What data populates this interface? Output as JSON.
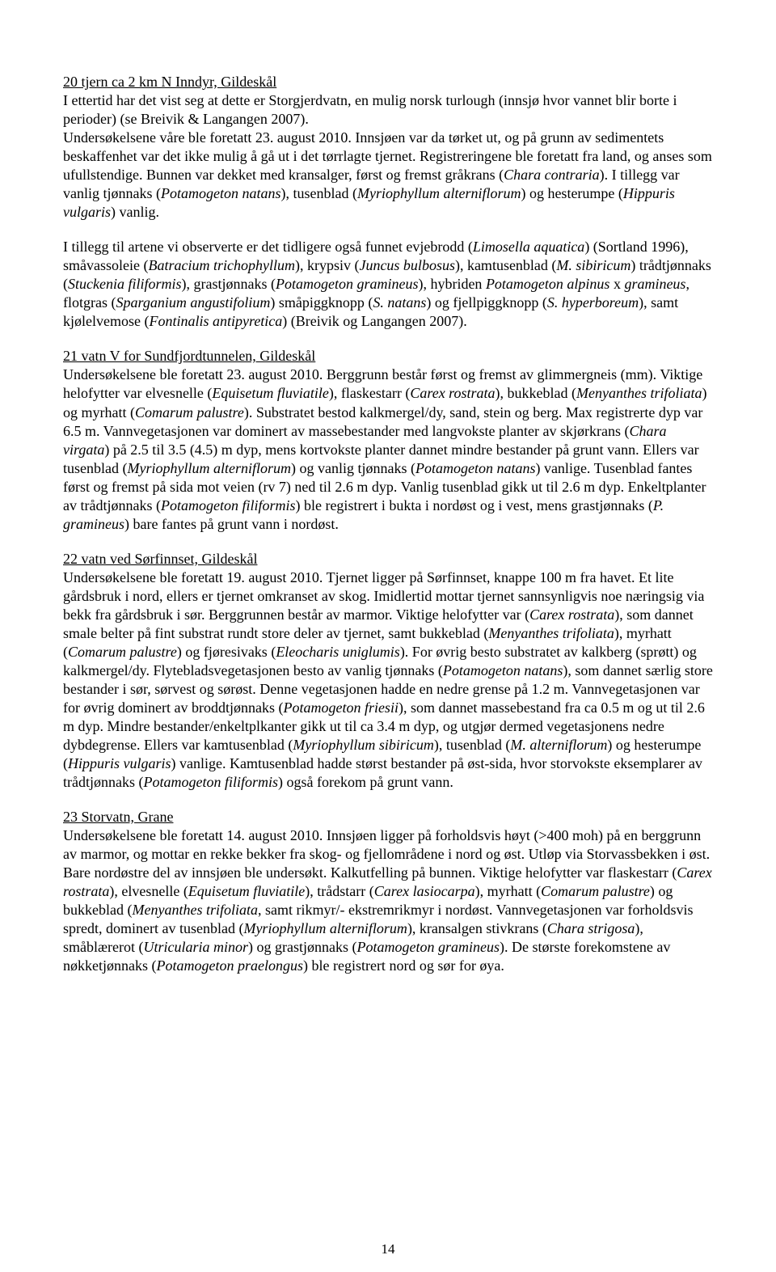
{
  "typography": {
    "font_family": "Times New Roman",
    "body_fontsize_pt": 12,
    "line_height": 1.28,
    "text_color": "#000000",
    "background_color": "#ffffff"
  },
  "page_number": "14",
  "sections": [
    {
      "title": "20 tjern ca 2 km N Inndyr, Gildeskål",
      "p1a": "I ettertid har det vist seg at dette er Storgjerdvatn, en mulig norsk turlough (innsjø hvor vannet blir borte i perioder) (se Breivik & Langangen 2007).",
      "p1b": "Undersøkelsene våre ble foretatt 23. august 2010. Innsjøen var da tørket ut, og på grunn av sedimentets beskaffenhet var det ikke mulig å gå ut i det tørrlagte tjernet. Registreringene ble foretatt fra land, og anses som ufullstendige. Bunnen var dekket med kransalger, først og fremst gråkrans (",
      "p1_i1": "Chara contraria",
      "p1c": "). I tillegg var vanlig tjønnaks (",
      "p1_i2": "Potamogeton natans",
      "p1d": "), tusenblad (",
      "p1_i3": "Myriophyllum alterniflorum",
      "p1e": ") og hesterumpe (",
      "p1_i4": "Hippuris vulgaris",
      "p1f": ") vanlig.",
      "p2a": "I tillegg til artene vi observerte er det tidligere også funnet evjebrodd (",
      "p2_i1": "Limosella aquatica",
      "p2b": ") (Sortland 1996), småvassoleie (",
      "p2_i2": "Batracium trichophyllum",
      "p2c": "), krypsiv (",
      "p2_i3": "Juncus bulbosus",
      "p2d": "), kamtusenblad (",
      "p2_i4": "M. sibiricum",
      "p2e": ") trådtjønnaks (",
      "p2_i5": "Stuckenia filiformis",
      "p2f": "), grastjønnaks (",
      "p2_i6": "Potamogeton gramineus",
      "p2g": "), hybriden ",
      "p2_i7": "Potamogeton alpinus",
      "p2h": " x ",
      "p2_i8": "gramineus",
      "p2i": ", flotgras (",
      "p2_i9": "Sparganium angustifolium",
      "p2j": ") småpiggknopp (",
      "p2_i10": "S. natans",
      "p2k": ") og fjellpiggknopp (",
      "p2_i11": "S. hyperboreum",
      "p2l": "), samt kjølelvemose (",
      "p2_i12": "Fontinalis antipyretica",
      "p2m": ") (Breivik og Langangen 2007)."
    },
    {
      "title": "21 vatn V for Sundfjordtunnelen, Gildeskål",
      "p1a": "Undersøkelsene ble foretatt 23. august 2010. Berggrunn består først og fremst av glimmergneis (mm). Viktige helofytter var elvesnelle (",
      "p1_i1": "Equisetum fluviatile",
      "p1b": "), flaskestarr (",
      "p1_i2": "Carex rostrata",
      "p1c": "), bukkeblad (",
      "p1_i3": "Menyanthes trifoliata",
      "p1d": ") og myrhatt (",
      "p1_i4": "Comarum palustre",
      "p1e": "). Substratet bestod kalkmergel/dy, sand, stein og berg. Max registrerte dyp var 6.5 m. Vannvegetasjonen var dominert av massebestander med langvokste planter av skjørkrans (",
      "p1_i5": "Chara virgata",
      "p1f": ") på 2.5 til 3.5 (4.5) m dyp, mens kortvokste planter dannet mindre bestander på grunt vann. Ellers var tusenblad (",
      "p1_i6": "Myriophyllum alterniflorum",
      "p1g": ") og vanlig tjønnaks (",
      "p1_i7": "Potamogeton natans",
      "p1h": ") vanlige. Tusenblad fantes først og fremst på sida mot veien (rv 7) ned til 2.6 m dyp. Vanlig tusenblad gikk ut til 2.6 m dyp. Enkeltplanter av trådtjønnaks (",
      "p1_i8": "Potamogeton filiformis",
      "p1i": ") ble registrert i bukta i nordøst og i vest, mens grastjønnaks (",
      "p1_i9": "P. gramineus",
      "p1j": ") bare fantes på grunt vann i nordøst."
    },
    {
      "title": "22 vatn ved Sørfinnset, Gildeskål",
      "p1a": "Undersøkelsene ble foretatt 19. august 2010. Tjernet ligger på Sørfinnset, knappe 100 m fra havet. Et lite gårdsbruk i nord, ellers er tjernet omkranset av skog. Imidlertid mottar tjernet sannsynligvis noe næringsig via bekk fra gårdsbruk i sør. Berggrunnen består av marmor. Viktige helofytter var (",
      "p1_i1": "Carex rostrata",
      "p1b": "), som dannet smale belter på fint substrat rundt store deler av tjernet, samt bukkeblad (",
      "p1_i2": "Menyanthes trifoliata",
      "p1c": "), myrhatt (",
      "p1_i3": "Comarum palustre",
      "p1d": ") og fjøresivaks (",
      "p1_i4": "Eleocharis uniglumis",
      "p1e": "). For øvrig besto substratet av kalkberg (sprøtt) og kalkmergel/dy. Flytebladsvegetasjonen besto av vanlig tjønnaks (",
      "p1_i5": "Potamogeton natans",
      "p1f": "), som dannet særlig store bestander i sør, sørvest og sørøst. Denne vegetasjonen hadde en nedre grense på 1.2 m. Vannvegetasjonen var for øvrig dominert av broddtjønnaks (",
      "p1_i6": "Potamogeton friesii",
      "p1g": "), som dannet massebestand fra ca 0.5 m og ut til 2.6 m dyp. Mindre bestander/enkeltplkanter gikk ut til ca 3.4 m dyp, og utgjør dermed vegetasjonens nedre dybdegrense. Ellers var kamtusenblad (",
      "p1_i7": "Myriophyllum sibiricum",
      "p1h": "), tusenblad (",
      "p1_i8": "M. alterniflorum",
      "p1i": ") og hesterumpe (",
      "p1_i9": "Hippuris vulgaris",
      "p1j": ") vanlige. Kamtusenblad hadde størst bestander på øst-sida, hvor storvokste eksemplarer av trådtjønnaks (",
      "p1_i10": "Potamogeton filiformis",
      "p1k": ") også forekom på grunt vann."
    },
    {
      "title": "23 Storvatn, Grane",
      "p1a": "Undersøkelsene ble foretatt 14. august 2010. Innsjøen ligger på forholdsvis høyt (>400 moh) på en berggrunn av marmor, og mottar en rekke bekker fra skog- og fjellområdene i nord og øst. Utløp via Storvassbekken i øst. Bare nordøstre del av innsjøen ble undersøkt. Kalkutfelling på bunnen. Viktige helofytter var flaskestarr (",
      "p1_i1": "Carex rostrata",
      "p1b": "), elvesnelle (",
      "p1_i2": "Equisetum fluviatile",
      "p1c": "), trådstarr (",
      "p1_i3": "Carex lasiocarpa",
      "p1d": "), myrhatt (",
      "p1_i4": "Comarum palustre",
      "p1e": ") og bukkeblad (",
      "p1_i5": "Menyanthes trifoliata",
      "p1f": ", samt rikmyr/- ekstremrikmyr i nordøst. Vannvegetasjonen var forholdsvis spredt, dominert av tusenblad (",
      "p1_i6": "Myriophyllum alterniflorum",
      "p1g": "), kransalgen stivkrans (",
      "p1_i7": "Chara strigosa",
      "p1h": "), småblærerot (",
      "p1_i8": "Utricularia minor",
      "p1i": ") og grastjønnaks (",
      "p1_i9": "Potamogeton gramineus",
      "p1j": "). De største forekomstene av nøkketjønnaks (",
      "p1_i10": "Potamogeton praelongus",
      "p1k": ") ble registrert nord og sør for øya."
    }
  ]
}
